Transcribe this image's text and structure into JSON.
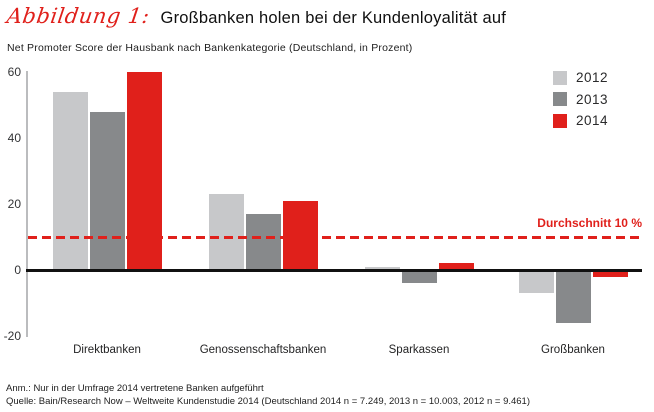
{
  "title": {
    "prefix": "Abbildung 1:",
    "text": "Großbanken holen bei der Kundenloyalität auf"
  },
  "subtitle": "Net Promoter Score der Hausbank nach Bankenkategorie (Deutschland, in Prozent)",
  "colors": {
    "accent_red": "#e0201b",
    "series_2012": "#c7c8ca",
    "series_2013": "#87898b",
    "series_2014": "#e0201b",
    "axis_gray": "#bbbcbe",
    "zero_line_black": "#111111"
  },
  "chart_data": {
    "type": "bar",
    "title": "Großbanken holen bei der Kundenloyalität auf",
    "subtitle": "Net Promoter Score der Hausbank nach Bankenkategorie (Deutschland, in Prozent)",
    "categories": [
      "Direktbanken",
      "Genossenschaftsbanken",
      "Sparkassen",
      "Großbanken"
    ],
    "series": [
      {
        "name": "2012",
        "color": "#c7c8ca",
        "values": [
          54,
          23,
          1,
          -7
        ]
      },
      {
        "name": "2013",
        "color": "#87898b",
        "values": [
          48,
          17,
          -4,
          -16
        ]
      },
      {
        "name": "2014",
        "color": "#e0201b",
        "values": [
          60,
          21,
          2,
          -2
        ]
      }
    ],
    "xlabel": "",
    "ylabel": "",
    "yticks": [
      60,
      40,
      20,
      0,
      -20
    ],
    "ylim": [
      -20,
      60
    ],
    "grid": false,
    "legend_position": "top-right",
    "reference_line": {
      "value": 10,
      "label": "Durchschnitt 10 %"
    }
  },
  "footnotes": [
    "Anm.: Nur in der Umfrage 2014 vertretene Banken aufgeführt",
    "Quelle: Bain/Research Now – Weltweite Kundenstudie 2014 (Deutschland 2014 n = 7.249, 2013 n = 10.003, 2012 n = 9.461)"
  ]
}
